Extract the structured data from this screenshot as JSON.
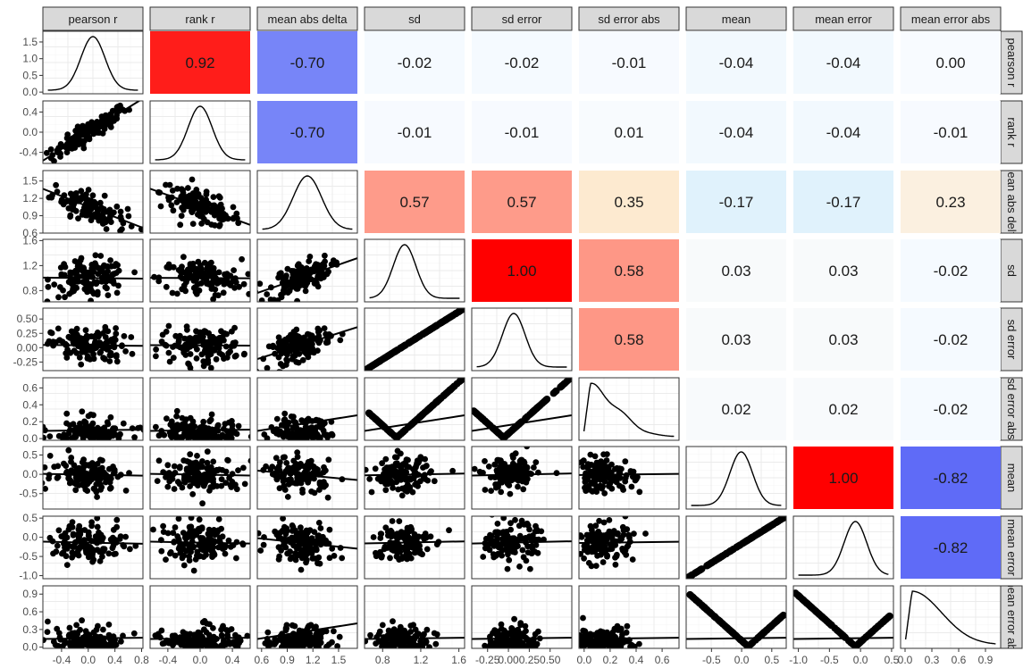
{
  "chart_data": {
    "type": "scatter",
    "variables": [
      "pearson r",
      "rank r",
      "mean abs delta",
      "sd",
      "sd error",
      "sd error abs",
      "mean",
      "mean error",
      "mean error abs"
    ],
    "row_strip_labels": [
      "pearson r",
      "rank r",
      "mean abs delta",
      "sd",
      "sd error",
      "sd error abs",
      "mean",
      "mean error",
      "mean error abs"
    ],
    "correlations": [
      {
        "row": 0,
        "col": 1,
        "label": "0.92",
        "value": 0.92
      },
      {
        "row": 0,
        "col": 2,
        "label": "-0.70",
        "value": -0.7
      },
      {
        "row": 0,
        "col": 3,
        "label": "-0.02",
        "value": -0.02
      },
      {
        "row": 0,
        "col": 4,
        "label": "-0.02",
        "value": -0.02
      },
      {
        "row": 0,
        "col": 5,
        "label": "-0.01",
        "value": -0.01
      },
      {
        "row": 0,
        "col": 6,
        "label": "-0.04",
        "value": -0.04
      },
      {
        "row": 0,
        "col": 7,
        "label": "-0.04",
        "value": -0.04
      },
      {
        "row": 0,
        "col": 8,
        "label": "0.00",
        "value": 0.0
      },
      {
        "row": 1,
        "col": 2,
        "label": "-0.70",
        "value": -0.7
      },
      {
        "row": 1,
        "col": 3,
        "label": "-0.01",
        "value": -0.01
      },
      {
        "row": 1,
        "col": 4,
        "label": "-0.01",
        "value": -0.01
      },
      {
        "row": 1,
        "col": 5,
        "label": "0.01",
        "value": 0.01
      },
      {
        "row": 1,
        "col": 6,
        "label": "-0.04",
        "value": -0.04
      },
      {
        "row": 1,
        "col": 7,
        "label": "-0.04",
        "value": -0.04
      },
      {
        "row": 1,
        "col": 8,
        "label": "-0.01",
        "value": -0.01
      },
      {
        "row": 2,
        "col": 3,
        "label": "0.57",
        "value": 0.57
      },
      {
        "row": 2,
        "col": 4,
        "label": "0.57",
        "value": 0.57
      },
      {
        "row": 2,
        "col": 5,
        "label": "0.35",
        "value": 0.35
      },
      {
        "row": 2,
        "col": 6,
        "label": "-0.17",
        "value": -0.17
      },
      {
        "row": 2,
        "col": 7,
        "label": "-0.17",
        "value": -0.17
      },
      {
        "row": 2,
        "col": 8,
        "label": "0.23",
        "value": 0.23
      },
      {
        "row": 3,
        "col": 4,
        "label": "1.00",
        "value": 1.0
      },
      {
        "row": 3,
        "col": 5,
        "label": "0.58",
        "value": 0.58
      },
      {
        "row": 3,
        "col": 6,
        "label": "0.03",
        "value": 0.03
      },
      {
        "row": 3,
        "col": 7,
        "label": "0.03",
        "value": 0.03
      },
      {
        "row": 3,
        "col": 8,
        "label": "-0.02",
        "value": -0.02
      },
      {
        "row": 4,
        "col": 5,
        "label": "0.58",
        "value": 0.58
      },
      {
        "row": 4,
        "col": 6,
        "label": "0.03",
        "value": 0.03
      },
      {
        "row": 4,
        "col": 7,
        "label": "0.03",
        "value": 0.03
      },
      {
        "row": 4,
        "col": 8,
        "label": "-0.02",
        "value": -0.02
      },
      {
        "row": 5,
        "col": 6,
        "label": "0.02",
        "value": 0.02
      },
      {
        "row": 5,
        "col": 7,
        "label": "0.02",
        "value": 0.02
      },
      {
        "row": 5,
        "col": 8,
        "label": "-0.02",
        "value": -0.02
      },
      {
        "row": 6,
        "col": 7,
        "label": "1.00",
        "value": 1.0
      },
      {
        "row": 6,
        "col": 8,
        "label": "-0.82",
        "value": -0.82
      },
      {
        "row": 7,
        "col": 8,
        "label": "-0.82",
        "value": -0.82
      }
    ],
    "color_scale": {
      "negative": "#3b44f6",
      "zero": "#f8fbff",
      "positive": "#ff0000"
    },
    "x_ticks": [
      [
        "-0.4",
        "0.0",
        "0.4",
        "0.8"
      ],
      [
        "-0.4",
        "0.0",
        "0.4"
      ],
      [
        "0.6",
        "0.9",
        "1.2",
        "1.5"
      ],
      [
        "0.8",
        "1.2",
        "1.6"
      ],
      [
        "-0.25",
        "0.00",
        "0.25",
        "0.50"
      ],
      [
        "0.0",
        "0.2",
        "0.4",
        "0.6"
      ],
      [
        "-0.5",
        "0.0",
        "0.5"
      ],
      [
        "-1.0",
        "-0.5",
        "0.0",
        "0.5"
      ],
      [
        "0.0",
        "0.3",
        "0.6",
        "0.9"
      ]
    ],
    "y_ticks": [
      [
        "1.5",
        "1.0",
        "0.5",
        "0.0"
      ],
      [
        "0.4",
        "0.0",
        "-0.4"
      ],
      [
        "1.5",
        "1.2",
        "0.9",
        "0.6"
      ],
      [
        "1.6",
        "1.2",
        "0.8"
      ],
      [
        "0.50",
        "0.25",
        "0.00",
        "-0.25"
      ],
      [
        "0.6",
        "0.4",
        "0.2",
        "0.0"
      ],
      [
        "0.5",
        "0.0",
        "-0.5"
      ],
      [
        "0.5",
        "0.0",
        "-0.5",
        "-1.0"
      ],
      [
        "0.9",
        "0.6",
        "0.3",
        "0.0"
      ]
    ],
    "grid": true,
    "point_color": "#000000"
  }
}
